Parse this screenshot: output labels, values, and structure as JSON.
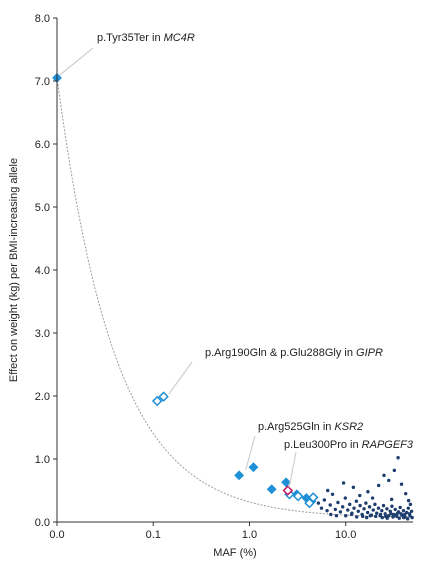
{
  "chart_data": {
    "type": "scatter",
    "xlabel": "MAF (%)",
    "ylabel": "Effect on weight (kg) per BMI-increasing allele",
    "x_scale": "log",
    "x_ticks": [
      {
        "value": 0.01,
        "label": "0.0"
      },
      {
        "value": 0.1,
        "label": "0.1"
      },
      {
        "value": 1,
        "label": "1.0"
      },
      {
        "value": 10,
        "label": "10.0"
      }
    ],
    "xlim": [
      0.01,
      50
    ],
    "y_ticks": [
      "0.0",
      "1.0",
      "2.0",
      "3.0",
      "4.0",
      "5.0",
      "6.0",
      "7.0",
      "8.0"
    ],
    "ylim": [
      0,
      8
    ],
    "grid": false,
    "colors": {
      "highlight": "#1f8fd6",
      "common": "#1d3d6e",
      "special": "#c2185b",
      "fit": "#9e9e9e",
      "leader": "#cfcfcf"
    },
    "annotations": [
      {
        "variant": "p.Tyr35Ter in ",
        "gene": "MC4R",
        "x": 0.01,
        "y": 7.05
      },
      {
        "variant": "p.Arg190Gln & p.Glu288Gly in ",
        "gene": "GIPR",
        "x": 0.135,
        "y": 1.98
      },
      {
        "variant": "p.Arg525Gln in ",
        "gene": "KSR2",
        "x": 0.85,
        "y": 0.78
      },
      {
        "variant": "p.Leu300Pro in ",
        "gene": "RAPGEF3",
        "x": 2.4,
        "y": 0.5
      }
    ],
    "series": [
      {
        "marker": "filled-diamond",
        "points": [
          {
            "x": 0.01,
            "y": 7.05
          },
          {
            "x": 0.78,
            "y": 0.74
          },
          {
            "x": 1.1,
            "y": 0.87
          },
          {
            "x": 1.7,
            "y": 0.52
          },
          {
            "x": 2.4,
            "y": 0.63
          },
          {
            "x": 3.1,
            "y": 0.44
          },
          {
            "x": 3.9,
            "y": 0.38
          },
          {
            "x": 4.4,
            "y": 0.33
          }
        ]
      },
      {
        "marker": "open-diamond",
        "points": [
          {
            "x": 0.11,
            "y": 1.92
          },
          {
            "x": 0.128,
            "y": 1.99
          },
          {
            "x": 2.6,
            "y": 0.44
          },
          {
            "x": 3.2,
            "y": 0.41
          },
          {
            "x": 4.6,
            "y": 0.39
          },
          {
            "x": 4.2,
            "y": 0.3
          }
        ]
      },
      {
        "marker": "open-diamond-special",
        "points": [
          {
            "x": 2.5,
            "y": 0.5
          }
        ]
      },
      {
        "marker": "small-dot",
        "points": [
          {
            "x": 5.2,
            "y": 0.3
          },
          {
            "x": 5.6,
            "y": 0.22
          },
          {
            "x": 6.0,
            "y": 0.35
          },
          {
            "x": 6.4,
            "y": 0.18
          },
          {
            "x": 6.9,
            "y": 0.27
          },
          {
            "x": 7.3,
            "y": 0.44
          },
          {
            "x": 7.8,
            "y": 0.2
          },
          {
            "x": 8.3,
            "y": 0.31
          },
          {
            "x": 8.8,
            "y": 0.16
          },
          {
            "x": 9.3,
            "y": 0.24
          },
          {
            "x": 9.9,
            "y": 0.38
          },
          {
            "x": 10.5,
            "y": 0.19
          },
          {
            "x": 11.0,
            "y": 0.28
          },
          {
            "x": 11.6,
            "y": 0.14
          },
          {
            "x": 12.2,
            "y": 0.22
          },
          {
            "x": 12.9,
            "y": 0.33
          },
          {
            "x": 13.5,
            "y": 0.17
          },
          {
            "x": 14.1,
            "y": 0.26
          },
          {
            "x": 14.8,
            "y": 0.12
          },
          {
            "x": 15.5,
            "y": 0.21
          },
          {
            "x": 16.2,
            "y": 0.3
          },
          {
            "x": 16.9,
            "y": 0.15
          },
          {
            "x": 17.7,
            "y": 0.24
          },
          {
            "x": 18.5,
            "y": 0.11
          },
          {
            "x": 19.3,
            "y": 0.19
          },
          {
            "x": 20.1,
            "y": 0.28
          },
          {
            "x": 21.0,
            "y": 0.14
          },
          {
            "x": 21.9,
            "y": 0.22
          },
          {
            "x": 22.8,
            "y": 0.1
          },
          {
            "x": 23.7,
            "y": 0.18
          },
          {
            "x": 24.7,
            "y": 0.26
          },
          {
            "x": 25.7,
            "y": 0.13
          },
          {
            "x": 26.8,
            "y": 0.21
          },
          {
            "x": 27.9,
            "y": 0.1
          },
          {
            "x": 29.0,
            "y": 0.17
          },
          {
            "x": 30.2,
            "y": 0.25
          },
          {
            "x": 31.4,
            "y": 0.12
          },
          {
            "x": 32.7,
            "y": 0.2
          },
          {
            "x": 34.0,
            "y": 0.09
          },
          {
            "x": 35.4,
            "y": 0.16
          },
          {
            "x": 36.8,
            "y": 0.23
          },
          {
            "x": 38.3,
            "y": 0.11
          },
          {
            "x": 39.8,
            "y": 0.18
          },
          {
            "x": 41.4,
            "y": 0.08
          },
          {
            "x": 43.0,
            "y": 0.15
          },
          {
            "x": 44.7,
            "y": 0.22
          },
          {
            "x": 46.5,
            "y": 0.1
          },
          {
            "x": 48.3,
            "y": 0.17
          },
          {
            "x": 9.5,
            "y": 0.62
          },
          {
            "x": 12.0,
            "y": 0.55
          },
          {
            "x": 17.0,
            "y": 0.48
          },
          {
            "x": 22.0,
            "y": 0.58
          },
          {
            "x": 25.0,
            "y": 0.74
          },
          {
            "x": 28.0,
            "y": 0.66
          },
          {
            "x": 32.0,
            "y": 0.82
          },
          {
            "x": 35.0,
            "y": 1.02
          },
          {
            "x": 38.0,
            "y": 0.6
          },
          {
            "x": 42.0,
            "y": 0.45
          },
          {
            "x": 6.5,
            "y": 0.5
          },
          {
            "x": 19.0,
            "y": 0.38
          },
          {
            "x": 14.0,
            "y": 0.42
          },
          {
            "x": 30.0,
            "y": 0.36
          },
          {
            "x": 45.0,
            "y": 0.34
          },
          {
            "x": 47.0,
            "y": 0.28
          },
          {
            "x": 10.0,
            "y": 0.1
          },
          {
            "x": 13.0,
            "y": 0.08
          },
          {
            "x": 16.5,
            "y": 0.07
          },
          {
            "x": 20.5,
            "y": 0.09
          },
          {
            "x": 24.0,
            "y": 0.07
          },
          {
            "x": 27.0,
            "y": 0.06
          },
          {
            "x": 31.0,
            "y": 0.08
          },
          {
            "x": 36.0,
            "y": 0.06
          },
          {
            "x": 40.0,
            "y": 0.07
          },
          {
            "x": 44.0,
            "y": 0.05
          },
          {
            "x": 49.0,
            "y": 0.07
          },
          {
            "x": 11.5,
            "y": 0.12
          },
          {
            "x": 18.0,
            "y": 0.1
          },
          {
            "x": 23.0,
            "y": 0.12
          },
          {
            "x": 33.0,
            "y": 0.11
          },
          {
            "x": 37.5,
            "y": 0.13
          },
          {
            "x": 7.0,
            "y": 0.12
          },
          {
            "x": 8.0,
            "y": 0.1
          },
          {
            "x": 15.0,
            "y": 0.09
          },
          {
            "x": 26.0,
            "y": 0.09
          },
          {
            "x": 29.5,
            "y": 0.13
          },
          {
            "x": 34.5,
            "y": 0.14
          },
          {
            "x": 41.0,
            "y": 0.12
          },
          {
            "x": 46.0,
            "y": 0.13
          }
        ]
      }
    ]
  }
}
